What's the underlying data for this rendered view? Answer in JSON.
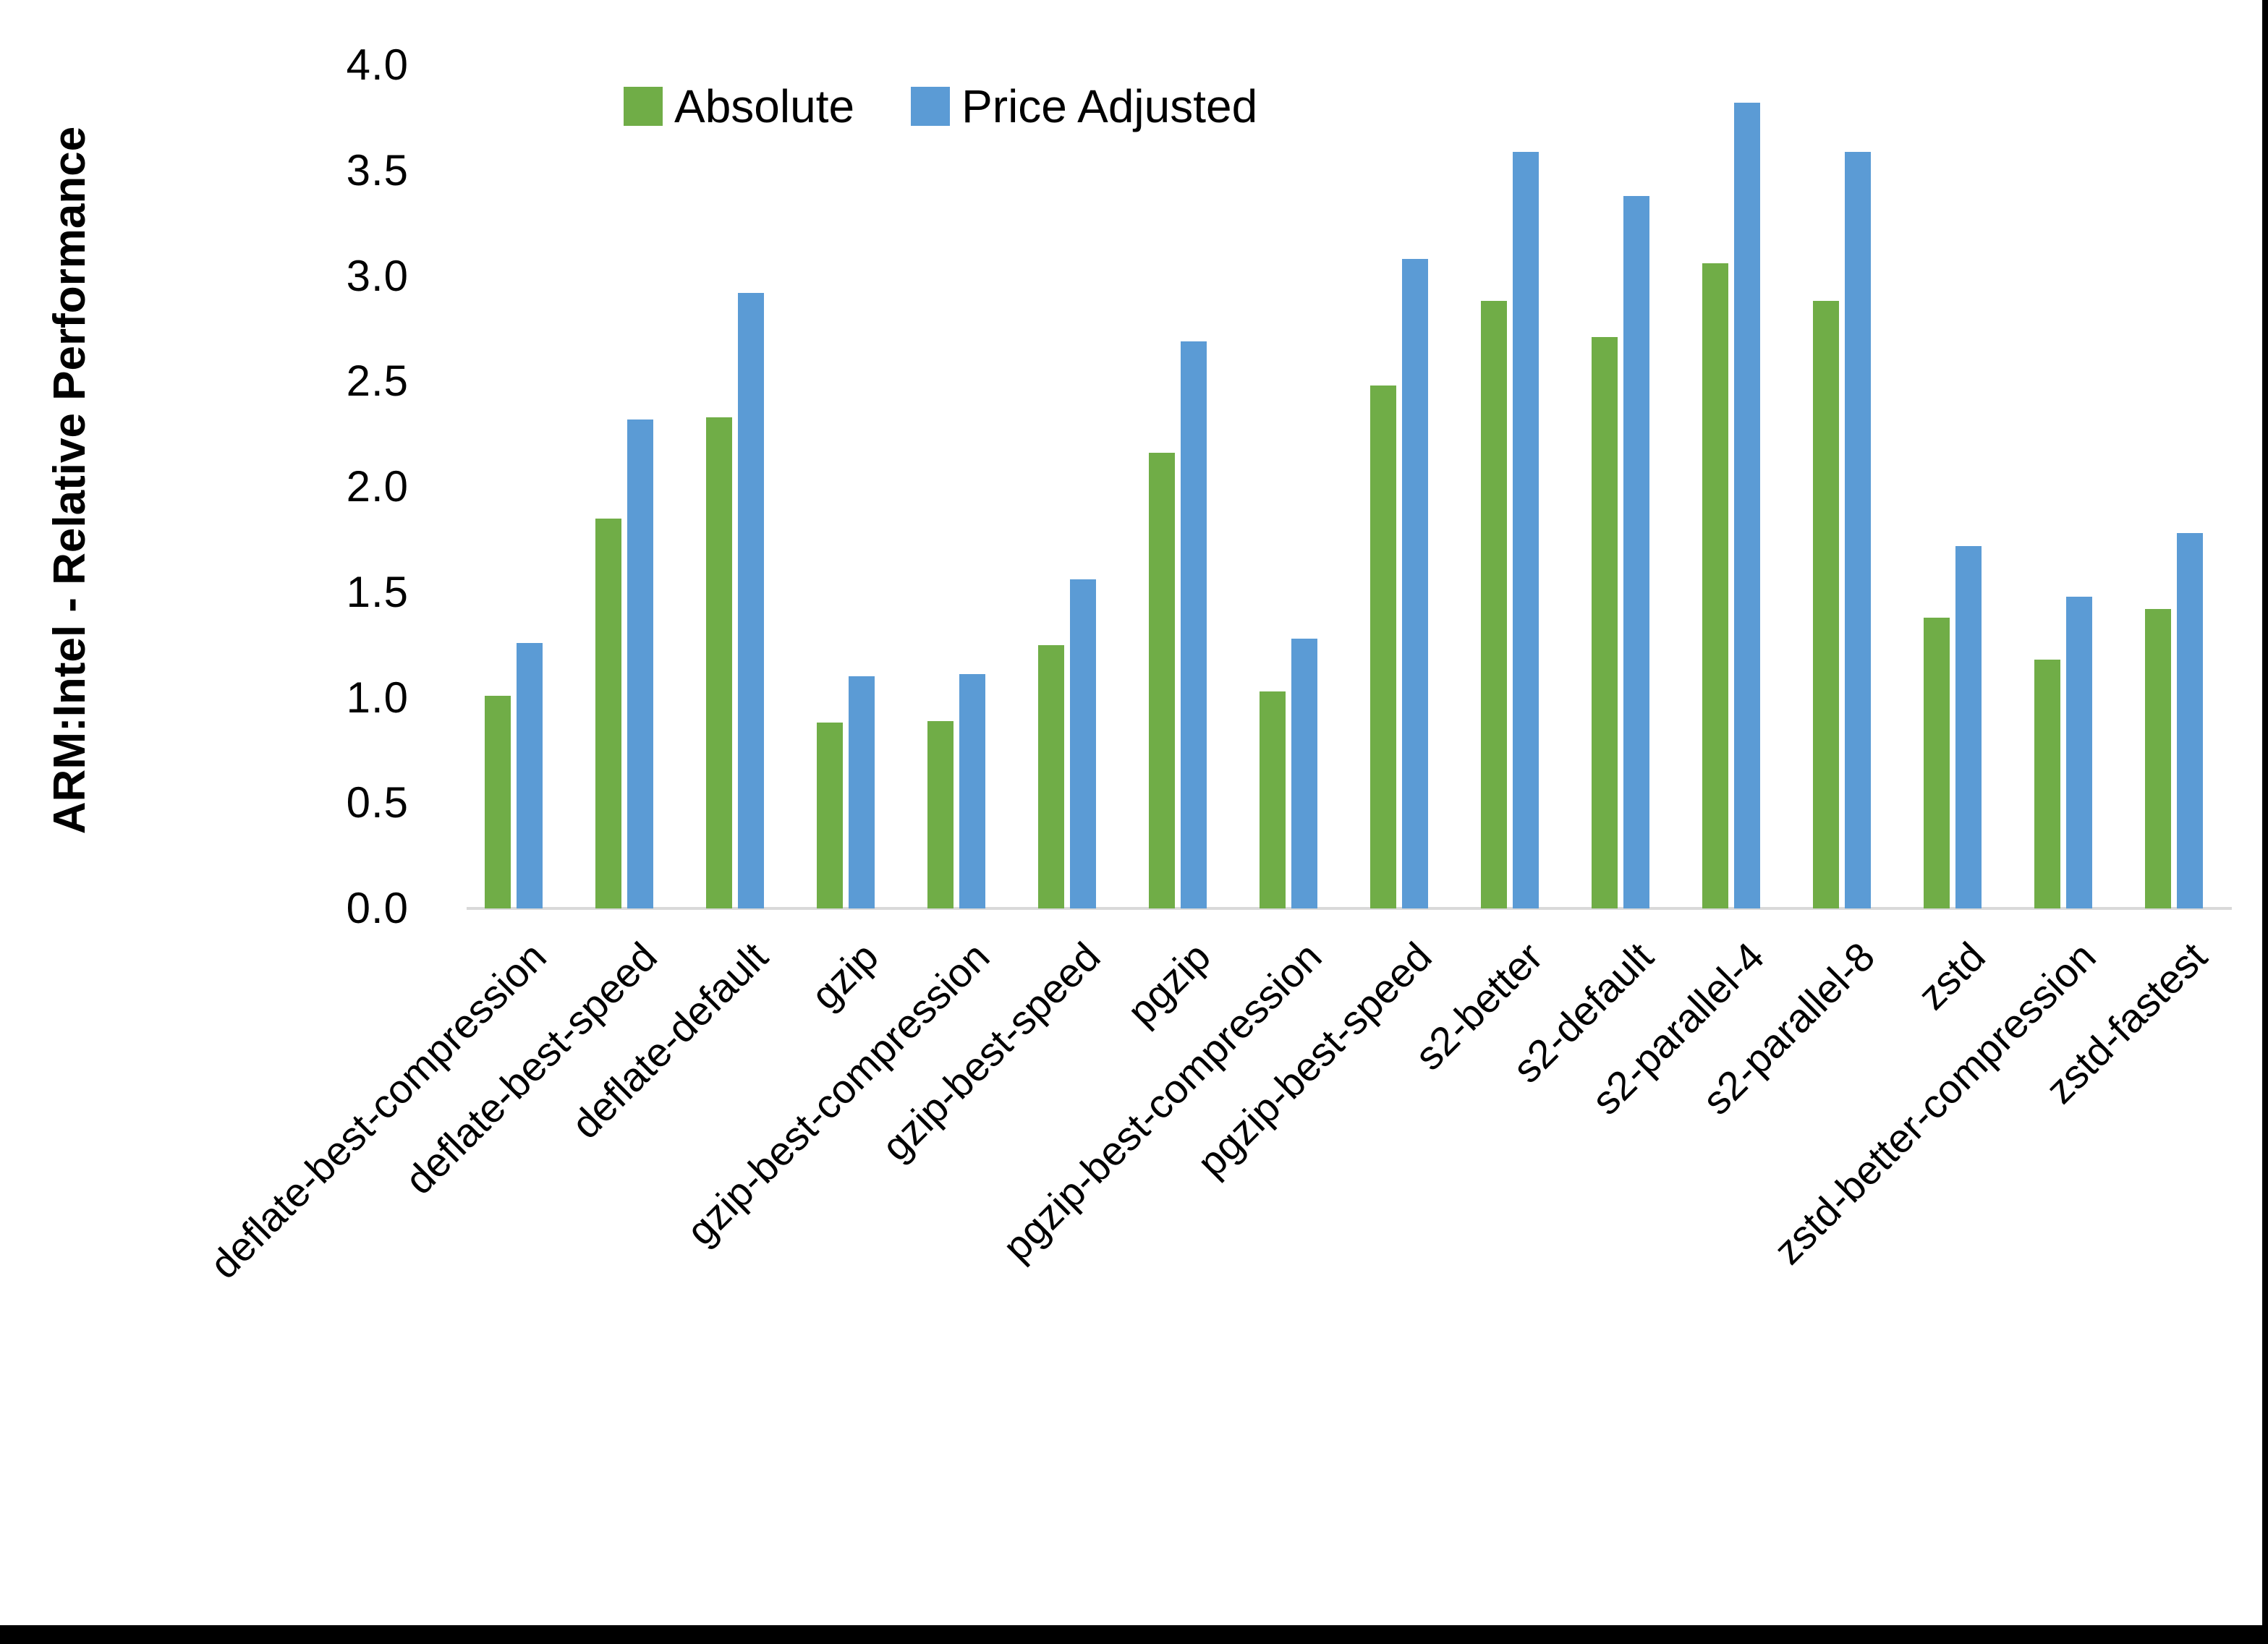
{
  "chart_data": {
    "type": "bar",
    "title": "",
    "xlabel": "",
    "ylabel": "ARM:Intel - Relative Performance",
    "ylim": [
      0.0,
      4.0
    ],
    "ytick_step": 0.5,
    "ytick_labels": [
      "0.0",
      "0.5",
      "1.0",
      "1.5",
      "2.0",
      "2.5",
      "3.0",
      "3.5",
      "4.0"
    ],
    "grid": false,
    "legend_position": "top-center",
    "categories": [
      "deflate-best-compression",
      "deflate-best-speed",
      "deflate-default",
      "gzip",
      "gzip-best-compression",
      "gzip-best-speed",
      "pgzip",
      "pgzip-best-compression",
      "pgzip-best-speed",
      "s2-better",
      "s2-default",
      "s2-parallel-4",
      "s2-parallel-8",
      "zstd",
      "zstd-better-compression",
      "zstd-fastest"
    ],
    "series": [
      {
        "name": "Absolute",
        "color": "#70AD47",
        "values": [
          1.01,
          1.85,
          2.33,
          0.88,
          0.89,
          1.25,
          2.16,
          1.03,
          2.48,
          2.88,
          2.71,
          3.06,
          2.88,
          1.38,
          1.18,
          1.42
        ]
      },
      {
        "name": "Price Adjusted",
        "color": "#5B9BD5",
        "values": [
          1.26,
          2.32,
          2.92,
          1.1,
          1.11,
          1.56,
          2.69,
          1.28,
          3.08,
          3.59,
          3.38,
          3.82,
          3.59,
          1.72,
          1.48,
          1.78
        ]
      }
    ],
    "axis_line_color": "#D9D9D9",
    "text_color": "#000000"
  }
}
